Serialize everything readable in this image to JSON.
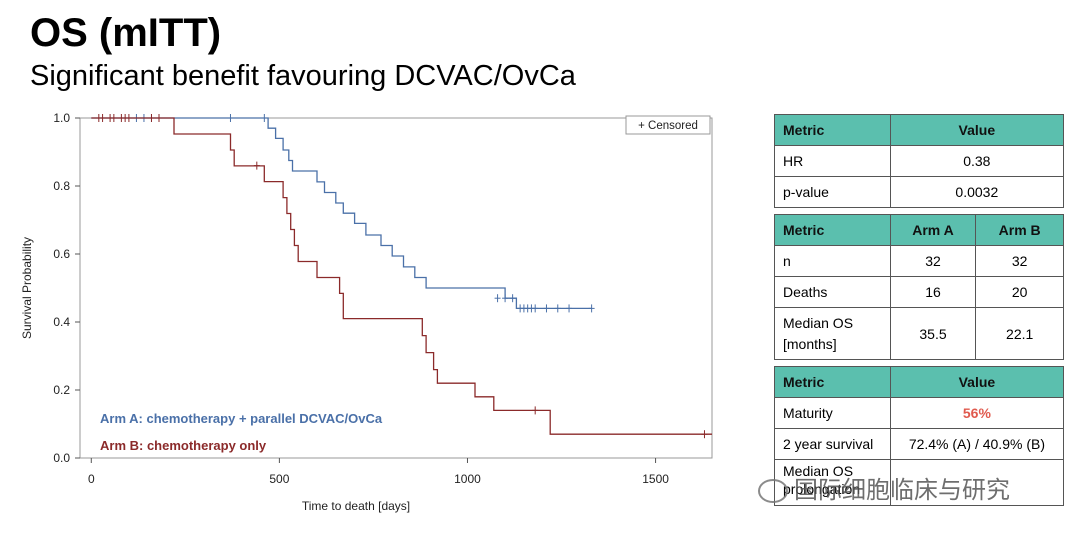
{
  "slide": {
    "title": "OS (mITT)",
    "subtitle": "Significant benefit favouring DCVAC/OvCa"
  },
  "chart_data": {
    "type": "line",
    "title": "",
    "xlabel": "Time to death [days]",
    "ylabel": "Survival Probability",
    "xlim": [
      -30,
      1650
    ],
    "ylim": [
      0,
      1.0
    ],
    "xticks": [
      0,
      500,
      1000,
      1500
    ],
    "yticks": [
      0.0,
      0.2,
      0.4,
      0.6,
      0.8,
      1.0
    ],
    "legend_text": "+ Censored",
    "series": [
      {
        "name": "Arm A: chemotherapy + parallel DCVAC/OvCa",
        "color": "#4a70a8",
        "x": [
          0,
          470,
          470,
          490,
          490,
          510,
          510,
          525,
          525,
          535,
          535,
          600,
          600,
          620,
          620,
          650,
          650,
          670,
          670,
          700,
          700,
          730,
          730,
          770,
          770,
          800,
          800,
          830,
          830,
          860,
          860,
          890,
          890,
          920,
          920,
          960,
          960,
          1000,
          1000,
          1040,
          1040,
          1100,
          1100,
          1130,
          1130,
          1330
        ],
        "y": [
          1.0,
          1.0,
          0.97,
          0.97,
          0.94,
          0.94,
          0.906,
          0.906,
          0.875,
          0.875,
          0.844,
          0.844,
          0.812,
          0.812,
          0.781,
          0.781,
          0.75,
          0.75,
          0.72,
          0.72,
          0.69,
          0.69,
          0.656,
          0.656,
          0.625,
          0.625,
          0.594,
          0.594,
          0.562,
          0.562,
          0.531,
          0.531,
          0.5,
          0.5,
          0.5,
          0.5,
          0.5,
          0.5,
          0.5,
          0.5,
          0.5,
          0.5,
          0.47,
          0.47,
          0.44,
          0.44
        ],
        "censored_x": [
          120,
          140,
          160,
          370,
          460,
          1080,
          1100,
          1120,
          1140,
          1150,
          1160,
          1170,
          1180,
          1210,
          1240,
          1270,
          1330
        ],
        "censored_y": [
          1.0,
          1.0,
          1.0,
          1.0,
          1.0,
          0.47,
          0.47,
          0.47,
          0.44,
          0.44,
          0.44,
          0.44,
          0.44,
          0.44,
          0.44,
          0.44,
          0.44
        ]
      },
      {
        "name": "Arm B: chemotherapy only",
        "color": "#8b2a2a",
        "x": [
          0,
          220,
          220,
          370,
          370,
          380,
          380,
          460,
          460,
          510,
          510,
          520,
          520,
          530,
          530,
          540,
          540,
          550,
          550,
          600,
          600,
          660,
          660,
          670,
          670,
          880,
          880,
          890,
          890,
          910,
          910,
          920,
          920,
          1020,
          1020,
          1070,
          1070,
          1220,
          1220,
          1650
        ],
        "y": [
          1.0,
          1.0,
          0.953,
          0.953,
          0.906,
          0.906,
          0.859,
          0.859,
          0.813,
          0.813,
          0.766,
          0.766,
          0.719,
          0.719,
          0.672,
          0.672,
          0.625,
          0.625,
          0.578,
          0.578,
          0.531,
          0.531,
          0.484,
          0.484,
          0.41,
          0.41,
          0.36,
          0.36,
          0.31,
          0.31,
          0.26,
          0.26,
          0.22,
          0.22,
          0.18,
          0.18,
          0.14,
          0.14,
          0.07,
          0.07
        ],
        "censored_x": [
          20,
          30,
          50,
          60,
          80,
          90,
          100,
          160,
          180,
          440,
          1180,
          1630
        ],
        "censored_y": [
          1.0,
          1.0,
          1.0,
          1.0,
          1.0,
          1.0,
          1.0,
          1.0,
          1.0,
          0.86,
          0.14,
          0.07
        ]
      }
    ]
  },
  "table1": {
    "headers": [
      "Metric",
      "Value"
    ],
    "rows": [
      [
        "HR",
        "0.38"
      ],
      [
        "p-value",
        "0.0032"
      ]
    ]
  },
  "table2": {
    "headers": [
      "Metric",
      "Arm A",
      "Arm B"
    ],
    "rows": [
      [
        "n",
        "32",
        "32"
      ],
      [
        "Deaths",
        "16",
        "20"
      ],
      [
        "Median OS",
        "35.5",
        "22.1"
      ]
    ],
    "median_os_unit": "[months]"
  },
  "table3": {
    "headers": [
      "Metric",
      "Value"
    ],
    "rows": [
      [
        "Maturity",
        "56%"
      ],
      [
        "2 year survival",
        "72.4% (A) / 40.9% (B)"
      ],
      [
        "Median OS",
        ""
      ]
    ],
    "median_os_suffix": "prolongation"
  },
  "watermark": "国际细胞临床与研究"
}
